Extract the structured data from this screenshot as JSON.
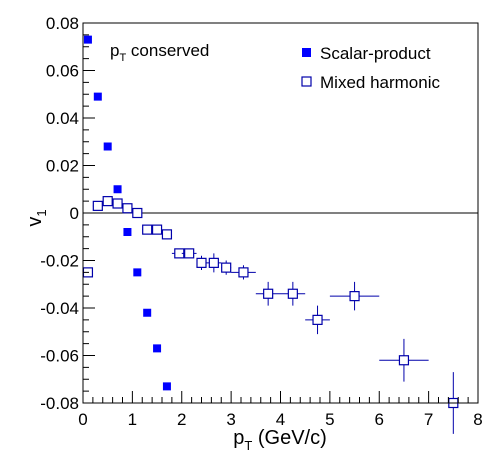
{
  "chart_data": {
    "type": "scatter",
    "xlabel": "p_T (GeV/c)",
    "ylabel": "v_1",
    "xlim": [
      0,
      8
    ],
    "ylim": [
      -0.08,
      0.08
    ],
    "xticks": [
      "0",
      "1",
      "2",
      "3",
      "4",
      "5",
      "6",
      "7",
      "8"
    ],
    "yticks": [
      "-0.08",
      "-0.06",
      "-0.04",
      "-0.02",
      "0",
      "0.02",
      "0.04",
      "0.06",
      "0.08"
    ],
    "annotation": {
      "main": "p",
      "sub": "T",
      "rest": " conserved"
    },
    "legend_position": "top-right",
    "series": [
      {
        "name": "Scalar-product",
        "marker": "filled-square",
        "color": "#0000ff",
        "points": [
          {
            "x": 0.1,
            "y": 0.073
          },
          {
            "x": 0.3,
            "y": 0.049
          },
          {
            "x": 0.5,
            "y": 0.028
          },
          {
            "x": 0.7,
            "y": 0.01
          },
          {
            "x": 0.9,
            "y": -0.008
          },
          {
            "x": 1.1,
            "y": -0.025
          },
          {
            "x": 1.3,
            "y": -0.042
          },
          {
            "x": 1.5,
            "y": -0.057
          },
          {
            "x": 1.7,
            "y": -0.073
          }
        ]
      },
      {
        "name": "Mixed harmonic",
        "marker": "open-square",
        "color": "#0000aa",
        "points": [
          {
            "x": 0.1,
            "y": -0.025,
            "xerr": 0.1,
            "yerr": 0.0
          },
          {
            "x": 0.3,
            "y": 0.003,
            "xerr": 0.1,
            "yerr": 0.0
          },
          {
            "x": 0.5,
            "y": 0.005,
            "xerr": 0.1,
            "yerr": 0.0
          },
          {
            "x": 0.7,
            "y": 0.004,
            "xerr": 0.1,
            "yerr": 0.0
          },
          {
            "x": 0.9,
            "y": 0.002,
            "xerr": 0.1,
            "yerr": 0.0
          },
          {
            "x": 1.1,
            "y": 0.0,
            "xerr": 0.1,
            "yerr": 0.0
          },
          {
            "x": 1.3,
            "y": -0.007,
            "xerr": 0.1,
            "yerr": 0.0
          },
          {
            "x": 1.5,
            "y": -0.007,
            "xerr": 0.1,
            "yerr": 0.0
          },
          {
            "x": 1.7,
            "y": -0.009,
            "xerr": 0.1,
            "yerr": 0.0
          },
          {
            "x": 1.95,
            "y": -0.017,
            "xerr": 0.15,
            "yerr": 0.0
          },
          {
            "x": 2.15,
            "y": -0.017,
            "xerr": 0.15,
            "yerr": 0.0
          },
          {
            "x": 2.4,
            "y": -0.021,
            "xerr": 0.1,
            "yerr": 0.003
          },
          {
            "x": 2.65,
            "y": -0.021,
            "xerr": 0.15,
            "yerr": 0.004
          },
          {
            "x": 2.9,
            "y": -0.023,
            "xerr": 0.1,
            "yerr": 0.003
          },
          {
            "x": 3.25,
            "y": -0.025,
            "xerr": 0.25,
            "yerr": 0.003
          },
          {
            "x": 3.75,
            "y": -0.034,
            "xerr": 0.25,
            "yerr": 0.005
          },
          {
            "x": 4.25,
            "y": -0.034,
            "xerr": 0.25,
            "yerr": 0.005
          },
          {
            "x": 4.75,
            "y": -0.045,
            "xerr": 0.25,
            "yerr": 0.006
          },
          {
            "x": 5.5,
            "y": -0.035,
            "xerr": 0.5,
            "yerr": 0.006
          },
          {
            "x": 6.5,
            "y": -0.062,
            "xerr": 0.5,
            "yerr": 0.009
          },
          {
            "x": 7.5,
            "y": -0.08,
            "xerr": 0.5,
            "yerr": 0.013
          }
        ]
      }
    ]
  }
}
